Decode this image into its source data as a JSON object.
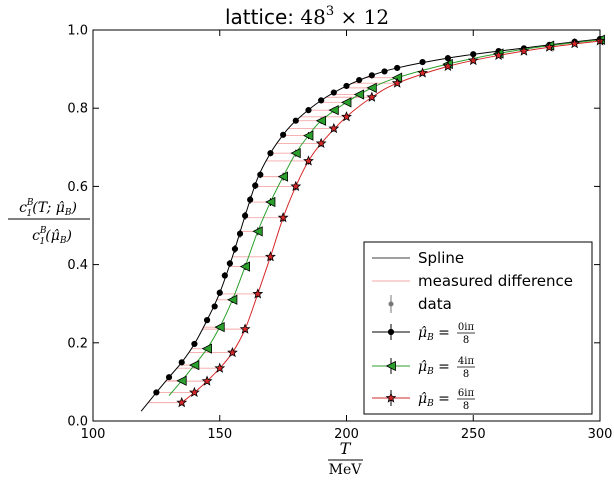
{
  "chart_data": {
    "type": "line",
    "title_prefix": "lattice: ",
    "title_math": {
      "base": "48",
      "exp": "3",
      "tail": " × 12"
    },
    "xlabel": {
      "num": "T",
      "den": "MeV"
    },
    "ylabel": {
      "num_main": "c",
      "num_sup": "B",
      "num_sub": "1",
      "num_args": "(T; μ̂",
      "num_args_sub": "B",
      "num_close": ")",
      "den_main": "c",
      "den_sup": "B",
      "den_sub": "1",
      "den_args": "(μ̂",
      "den_args_sub": "B",
      "den_close": ")"
    },
    "xlim": [
      100,
      300
    ],
    "ylim": [
      0.0,
      1.0
    ],
    "xticks": [
      "100",
      "150",
      "200",
      "250",
      "300"
    ],
    "xtick_values": [
      100,
      150,
      200,
      250,
      300
    ],
    "yticks": [
      "0.0",
      "0.2",
      "0.4",
      "0.6",
      "0.8",
      "1.0"
    ],
    "ytick_values": [
      0.0,
      0.2,
      0.4,
      0.6,
      0.8,
      1.0
    ],
    "legend": {
      "placement": "lower-right",
      "entries": [
        {
          "label": "Spline",
          "kind": "line",
          "color": "#000000"
        },
        {
          "label": "measured difference",
          "kind": "line",
          "color": "#f4a8a8"
        },
        {
          "label": "data",
          "kind": "errorbar",
          "color": "#777777"
        },
        {
          "label_math": {
            "main": "μ̂",
            "sub": "B",
            "eq": " = ",
            "num": "0iπ",
            "den": "8"
          },
          "kind": "series",
          "series": 0
        },
        {
          "label_math": {
            "main": "μ̂",
            "sub": "B",
            "eq": " = ",
            "num": "4iπ",
            "den": "8"
          },
          "kind": "series",
          "series": 1
        },
        {
          "label_math": {
            "main": "μ̂",
            "sub": "B",
            "eq": " = ",
            "num": "6iπ",
            "den": "8"
          },
          "kind": "series",
          "series": 2
        }
      ]
    },
    "series": [
      {
        "marker": "circle",
        "color": "#000000",
        "fill": "#000000",
        "spline": [
          [
            119,
            0.025
          ],
          [
            125,
            0.073
          ],
          [
            130,
            0.112
          ],
          [
            135,
            0.15
          ],
          [
            140,
            0.197
          ],
          [
            145,
            0.258
          ],
          [
            150,
            0.328
          ],
          [
            155,
            0.42
          ],
          [
            160,
            0.525
          ],
          [
            165,
            0.622
          ],
          [
            170,
            0.685
          ],
          [
            175,
            0.732
          ],
          [
            180,
            0.768
          ],
          [
            190,
            0.82
          ],
          [
            200,
            0.857
          ],
          [
            210,
            0.884
          ],
          [
            220,
            0.903
          ],
          [
            240,
            0.928
          ],
          [
            260,
            0.946
          ],
          [
            280,
            0.962
          ],
          [
            300,
            0.977
          ]
        ],
        "points": [
          [
            125,
            0.073
          ],
          [
            130,
            0.112
          ],
          [
            135,
            0.15
          ],
          [
            140,
            0.197
          ],
          [
            145,
            0.258
          ],
          [
            148,
            0.293
          ],
          [
            150,
            0.328
          ],
          [
            152,
            0.372
          ],
          [
            154,
            0.403
          ],
          [
            156,
            0.44
          ],
          [
            158,
            0.479
          ],
          [
            160,
            0.525
          ],
          [
            162,
            0.566
          ],
          [
            164,
            0.602
          ],
          [
            166,
            0.63
          ],
          [
            170,
            0.685
          ],
          [
            175,
            0.732
          ],
          [
            180,
            0.768
          ],
          [
            185,
            0.795
          ],
          [
            190,
            0.82
          ],
          [
            195,
            0.84
          ],
          [
            200,
            0.857
          ],
          [
            205,
            0.872
          ],
          [
            210,
            0.884
          ],
          [
            215,
            0.894
          ],
          [
            220,
            0.903
          ],
          [
            230,
            0.918
          ],
          [
            240,
            0.928
          ],
          [
            250,
            0.938
          ],
          [
            260,
            0.946
          ],
          [
            270,
            0.953
          ],
          [
            280,
            0.962
          ],
          [
            290,
            0.97
          ],
          [
            300,
            0.977
          ]
        ],
        "errors": [
          0.006,
          0.006,
          0.006,
          0.006,
          0.007,
          0.007,
          0.008,
          0.009,
          0.009,
          0.01,
          0.01,
          0.01,
          0.01,
          0.009,
          0.009,
          0.008,
          0.007,
          0.006,
          0.006,
          0.005,
          0.005,
          0.004,
          0.004,
          0.004,
          0.004,
          0.003,
          0.003,
          0.003,
          0.003,
          0.003,
          0.003,
          0.003,
          0.003,
          0.003
        ]
      },
      {
        "marker": "triangle-left",
        "color": "#2ca02c",
        "fill": "#2ca02c",
        "spline": [
          [
            130,
            0.065
          ],
          [
            135,
            0.103
          ],
          [
            140,
            0.143
          ],
          [
            145,
            0.185
          ],
          [
            150,
            0.24
          ],
          [
            155,
            0.31
          ],
          [
            160,
            0.395
          ],
          [
            165,
            0.485
          ],
          [
            170,
            0.56
          ],
          [
            175,
            0.625
          ],
          [
            180,
            0.685
          ],
          [
            185,
            0.73
          ],
          [
            190,
            0.768
          ],
          [
            200,
            0.815
          ],
          [
            210,
            0.852
          ],
          [
            220,
            0.878
          ],
          [
            240,
            0.913
          ],
          [
            260,
            0.94
          ],
          [
            280,
            0.96
          ],
          [
            300,
            0.975
          ]
        ],
        "points": [
          [
            135,
            0.103
          ],
          [
            140,
            0.143
          ],
          [
            145,
            0.185
          ],
          [
            150,
            0.24
          ],
          [
            155,
            0.31
          ],
          [
            160,
            0.395
          ],
          [
            165,
            0.485
          ],
          [
            170,
            0.56
          ],
          [
            175,
            0.625
          ],
          [
            180,
            0.685
          ],
          [
            185,
            0.73
          ],
          [
            190,
            0.768
          ],
          [
            195,
            0.795
          ],
          [
            200,
            0.815
          ],
          [
            205,
            0.835
          ],
          [
            210,
            0.852
          ],
          [
            220,
            0.878
          ],
          [
            240,
            0.913
          ],
          [
            260,
            0.94
          ],
          [
            280,
            0.96
          ],
          [
            300,
            0.975
          ]
        ],
        "errors": [
          0.006,
          0.006,
          0.006,
          0.007,
          0.008,
          0.009,
          0.01,
          0.01,
          0.01,
          0.009,
          0.009,
          0.008,
          0.007,
          0.006,
          0.006,
          0.005,
          0.005,
          0.004,
          0.003,
          0.003,
          0.003
        ]
      },
      {
        "marker": "star",
        "color": "#d62728",
        "fill": "#d62728",
        "spline": [
          [
            135,
            0.047
          ],
          [
            140,
            0.073
          ],
          [
            145,
            0.102
          ],
          [
            150,
            0.135
          ],
          [
            155,
            0.175
          ],
          [
            160,
            0.235
          ],
          [
            165,
            0.325
          ],
          [
            170,
            0.42
          ],
          [
            175,
            0.52
          ],
          [
            180,
            0.6
          ],
          [
            185,
            0.665
          ],
          [
            190,
            0.71
          ],
          [
            200,
            0.778
          ],
          [
            210,
            0.828
          ],
          [
            220,
            0.864
          ],
          [
            240,
            0.907
          ],
          [
            260,
            0.935
          ],
          [
            280,
            0.956
          ],
          [
            300,
            0.972
          ]
        ],
        "points": [
          [
            135,
            0.047
          ],
          [
            140,
            0.073
          ],
          [
            145,
            0.102
          ],
          [
            150,
            0.135
          ],
          [
            155,
            0.175
          ],
          [
            160,
            0.235
          ],
          [
            165,
            0.325
          ],
          [
            170,
            0.42
          ],
          [
            175,
            0.52
          ],
          [
            180,
            0.6
          ],
          [
            185,
            0.665
          ],
          [
            190,
            0.71
          ],
          [
            195,
            0.748
          ],
          [
            200,
            0.778
          ],
          [
            210,
            0.828
          ],
          [
            220,
            0.864
          ],
          [
            230,
            0.89
          ],
          [
            240,
            0.907
          ],
          [
            250,
            0.922
          ],
          [
            260,
            0.935
          ],
          [
            270,
            0.946
          ],
          [
            280,
            0.956
          ],
          [
            290,
            0.965
          ],
          [
            300,
            0.972
          ]
        ],
        "errors": [
          0.005,
          0.005,
          0.006,
          0.006,
          0.007,
          0.008,
          0.009,
          0.01,
          0.01,
          0.01,
          0.009,
          0.008,
          0.007,
          0.006,
          0.005,
          0.005,
          0.004,
          0.004,
          0.004,
          0.003,
          0.003,
          0.003,
          0.003,
          0.003
        ]
      }
    ],
    "difference_color": "#f4a8a8"
  }
}
